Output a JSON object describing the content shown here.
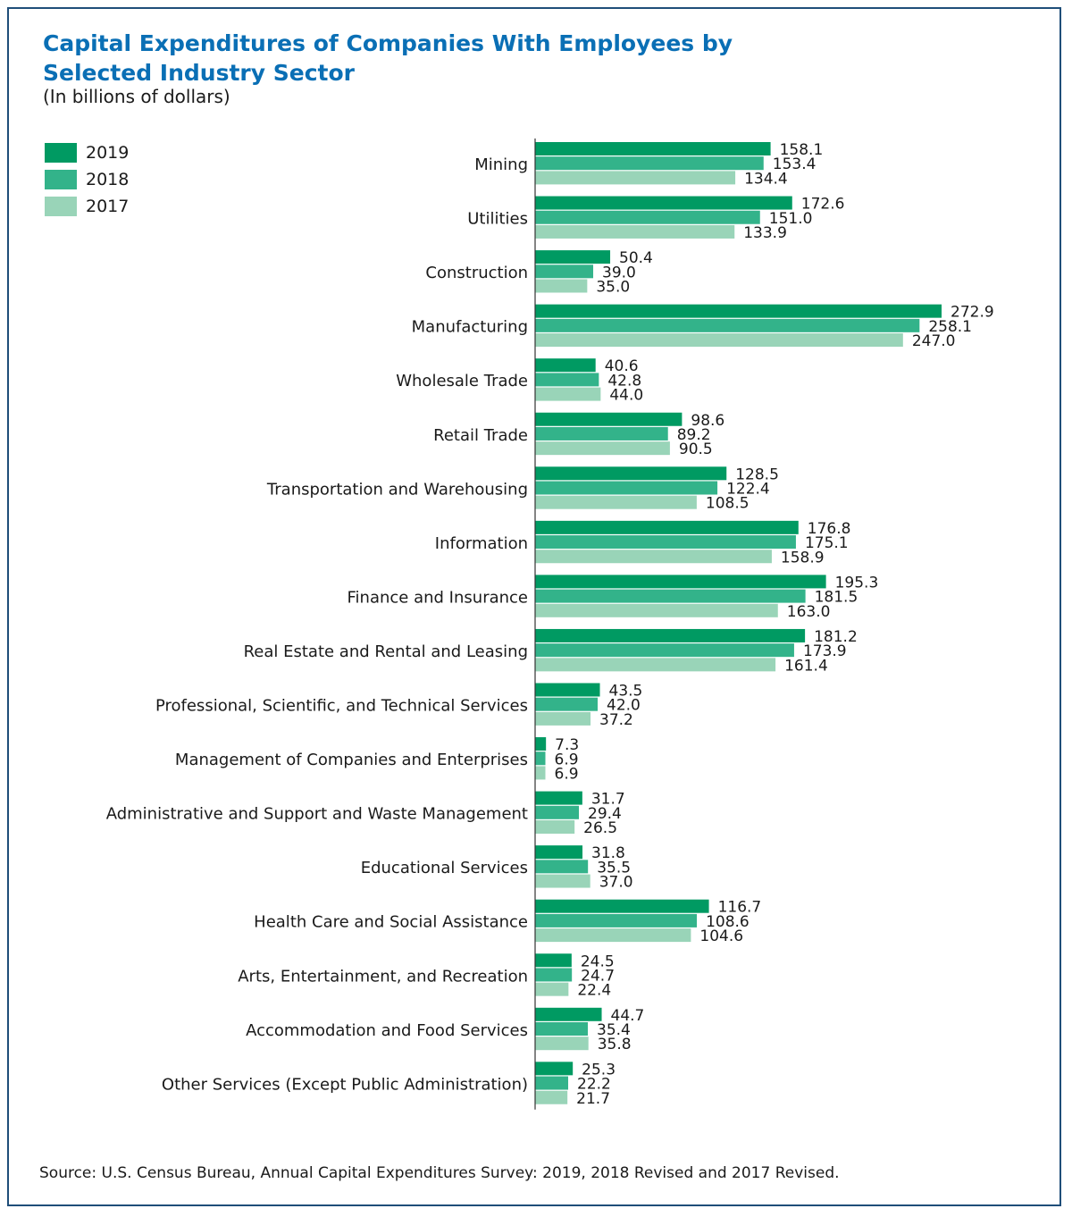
{
  "title_line1": "Capital Expenditures of Companies With Employees by",
  "title_line2": "Selected Industry Sector",
  "subtitle": "(In billions of dollars)",
  "source": "Source: U.S. Census Bureau, Annual Capital Expenditures Survey: 2019, 2018 Revised and 2017 Revised.",
  "chart_data": {
    "type": "bar",
    "orientation": "horizontal",
    "title": "Capital Expenditures of Companies With Employees by Selected Industry Sector",
    "subtitle": "(In billions of dollars)",
    "legend_placement": "top-left",
    "grid": false,
    "xlim": [
      0,
      280
    ],
    "categories": [
      "Mining",
      "Utilities",
      "Construction",
      "Manufacturing",
      "Wholesale Trade",
      "Retail Trade",
      "Transportation and Warehousing",
      "Information",
      "Finance and Insurance",
      "Real Estate and Rental and Leasing",
      "Professional, Scientific, and Technical Services",
      "Management of Companies and Enterprises",
      "Administrative and Support and Waste Management",
      "Educational Services",
      "Health Care and Social Assistance",
      "Arts, Entertainment, and Recreation",
      "Accommodation and Food Services",
      "Other Services (Except Public Administration)"
    ],
    "series": [
      {
        "name": "2019",
        "color": "#009a62",
        "values": [
          158.1,
          172.6,
          50.4,
          272.9,
          40.6,
          98.6,
          128.5,
          176.8,
          195.3,
          181.2,
          43.5,
          7.3,
          31.7,
          31.8,
          116.7,
          24.5,
          44.7,
          25.3
        ],
        "labels": [
          "158.1",
          "172.6",
          "50.4",
          "272.9",
          "40.6",
          "98.6",
          "128.5",
          "176.8",
          "195.3",
          "181.2",
          "43.5",
          "7.3",
          "31.7",
          "31.8",
          "116.7",
          "24.5",
          "44.7",
          "25.3"
        ]
      },
      {
        "name": "2018",
        "color": "#33b38a",
        "values": [
          153.4,
          151.0,
          39.0,
          258.1,
          42.8,
          89.2,
          122.4,
          175.1,
          181.5,
          173.9,
          42.0,
          6.9,
          29.4,
          35.5,
          108.6,
          24.7,
          35.4,
          22.2
        ],
        "labels": [
          "153.4",
          "151.0",
          "39.0",
          "258.1",
          "42.8",
          "89.2",
          "122.4",
          "175.1",
          "181.5",
          "173.9",
          "42.0",
          "6.9",
          "29.4",
          "35.5",
          "108.6",
          "24.7",
          "35.4",
          "22.2"
        ]
      },
      {
        "name": "2017",
        "color": "#99d4b8",
        "values": [
          134.4,
          133.9,
          35.0,
          247.0,
          44.0,
          90.5,
          108.5,
          158.9,
          163.0,
          161.4,
          37.2,
          6.9,
          26.5,
          37.0,
          104.6,
          22.4,
          35.8,
          21.7
        ],
        "labels": [
          "134.4",
          "133.9",
          "35.0",
          "247.0",
          "44.0",
          "90.5",
          "108.5",
          "158.9",
          "163.0",
          "161.4",
          "37.2",
          "6.9",
          "26.5",
          "37.0",
          "104.6",
          "22.4",
          "35.8",
          "21.7"
        ]
      }
    ]
  }
}
